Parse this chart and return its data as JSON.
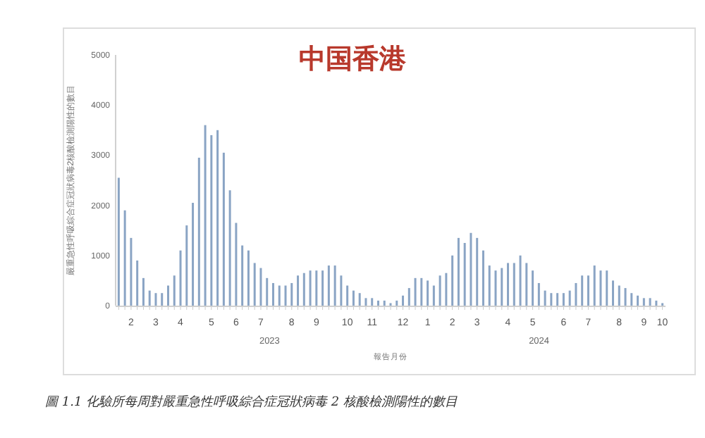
{
  "chart_data": {
    "type": "bar",
    "title": "中国香港",
    "ylabel": "嚴重急性呼吸綜合症冠狀病毒2核酸檢測陽性的數目",
    "xlabel": "報告月份",
    "categories": [
      null,
      null,
      "2",
      null,
      null,
      null,
      "3",
      null,
      null,
      null,
      "4",
      null,
      null,
      null,
      null,
      "5",
      null,
      null,
      null,
      "6",
      null,
      null,
      null,
      "7",
      null,
      null,
      null,
      null,
      "8",
      null,
      null,
      null,
      "9",
      null,
      null,
      null,
      null,
      "10",
      null,
      null,
      null,
      "11",
      null,
      null,
      null,
      null,
      "12",
      null,
      null,
      null,
      "1",
      null,
      null,
      null,
      "2",
      null,
      null,
      null,
      "3",
      null,
      null,
      null,
      null,
      "4",
      null,
      null,
      null,
      "5",
      null,
      null,
      null,
      null,
      "6",
      null,
      null,
      null,
      "7",
      null,
      null,
      null,
      null,
      "8",
      null,
      null,
      null,
      "9",
      null,
      null,
      "10"
    ],
    "values": [
      2550,
      1900,
      1350,
      900,
      550,
      300,
      250,
      250,
      400,
      600,
      1100,
      1600,
      2050,
      2950,
      3600,
      3400,
      3500,
      3050,
      2300,
      1650,
      1200,
      1100,
      850,
      750,
      550,
      450,
      400,
      400,
      450,
      600,
      650,
      700,
      700,
      700,
      800,
      800,
      600,
      400,
      300,
      250,
      150,
      150,
      100,
      100,
      50,
      100,
      200,
      350,
      550,
      550,
      500,
      400,
      600,
      650,
      1000,
      1350,
      1250,
      1450,
      1350,
      1100,
      800,
      700,
      750,
      850,
      850,
      1000,
      850,
      700,
      450,
      300,
      250,
      250,
      250,
      300,
      450,
      600,
      600,
      800,
      700,
      700,
      500,
      400,
      350,
      250,
      200,
      150,
      150,
      100,
      50
    ],
    "color": "#8aa4c4",
    "ylim": [
      0,
      5000
    ],
    "yticks": [
      0,
      1000,
      2000,
      3000,
      4000,
      5000
    ],
    "grid": false,
    "annotations": [
      "2023",
      "2024",
      "圖 1.1 化驗所每周對嚴重急性呼吸綜合症冠狀病毒 2 核酸檢測陽性的數目"
    ]
  }
}
